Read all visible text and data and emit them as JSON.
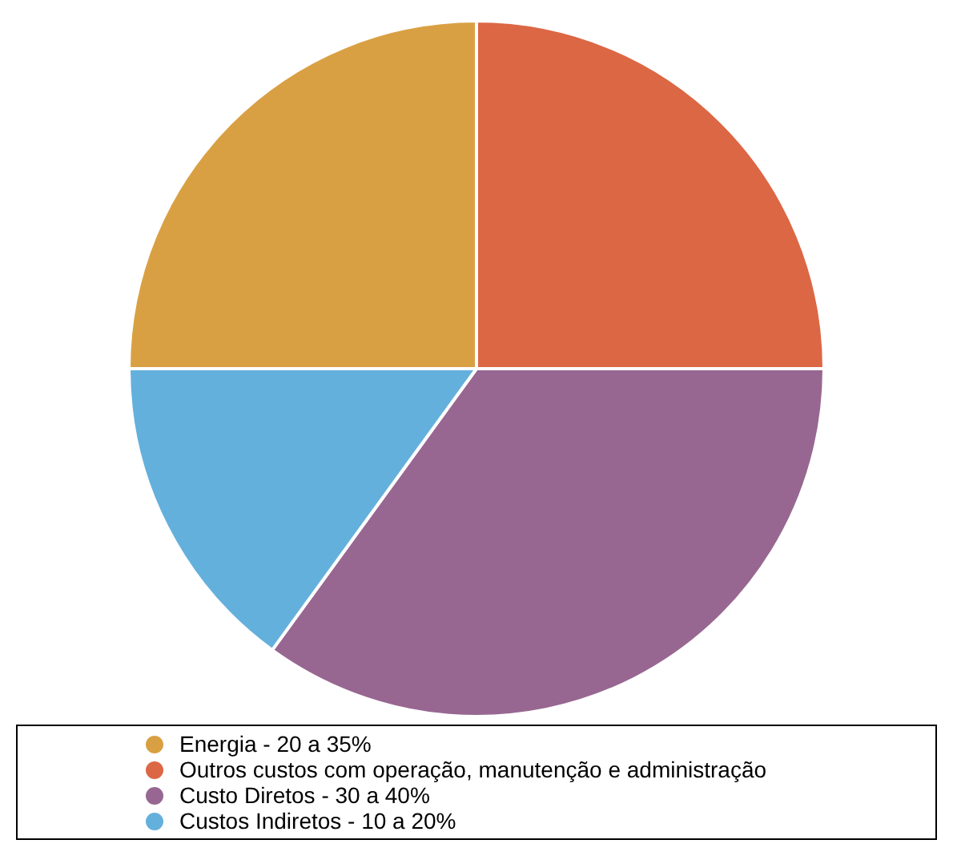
{
  "chart_data": {
    "type": "pie",
    "categories": [
      "Energia - 20 a 35%",
      "Outros custos com operação, manutenção e administração",
      "Custo Diretos - 30 a 40%",
      "Custos Indiretos - 10 a 20%"
    ],
    "values": [
      25,
      25,
      35,
      15
    ],
    "colors": [
      "#d9a043",
      "#dc6744",
      "#976791",
      "#64b0dc"
    ],
    "legend": "bottom"
  }
}
